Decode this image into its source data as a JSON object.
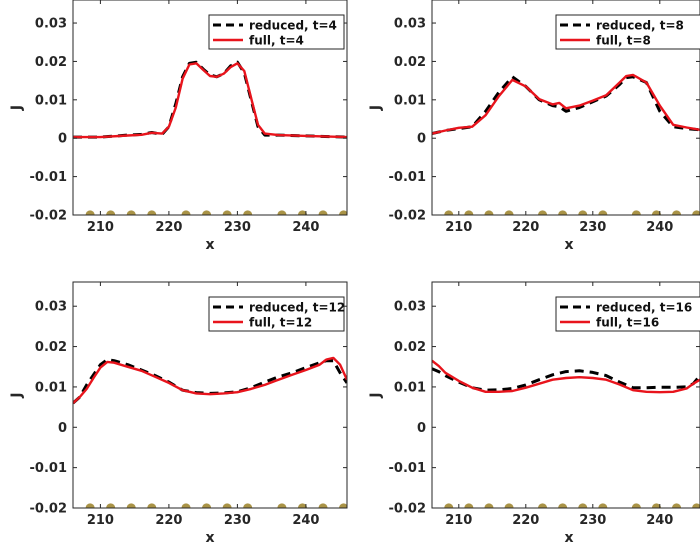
{
  "chart_data": [
    {
      "type": "line",
      "xlabel": "x",
      "ylabel": "J",
      "xlim": [
        206,
        246
      ],
      "ylim": [
        -0.02,
        0.036
      ],
      "xticks": [
        "210",
        "220",
        "230",
        "240"
      ],
      "yticks": [
        "0.03",
        "0.02",
        "0.01",
        "0",
        "-0.01",
        "-0.02"
      ],
      "legend_position": "top-right",
      "node_markers_y": -0.02,
      "node_markers_x": [
        208.5,
        211.5,
        214.5,
        217.5,
        222.5,
        225.5,
        228.5,
        231.5,
        236.5,
        239.5,
        242.5,
        245.5
      ],
      "series": [
        {
          "name": "reduced, t=4",
          "style": "dashed",
          "color": "#000000",
          "x": [
            206,
            210,
            214,
            216,
            217.5,
            219,
            220,
            221,
            222,
            223,
            224,
            225,
            226,
            227,
            228,
            229,
            230,
            231,
            232,
            233,
            234,
            236,
            240,
            244,
            246
          ],
          "y": [
            0.0003,
            0.0003,
            0.0008,
            0.001,
            0.0015,
            0.001,
            0.003,
            0.009,
            0.016,
            0.0195,
            0.0198,
            0.018,
            0.0165,
            0.016,
            0.0168,
            0.0188,
            0.0198,
            0.017,
            0.01,
            0.003,
            0.0008,
            0.0008,
            0.0006,
            0.0004,
            0.0003
          ]
        },
        {
          "name": "full, t=4",
          "style": "solid",
          "color": "#e8141c",
          "x": [
            206,
            210,
            214,
            216,
            217.5,
            219,
            220,
            221,
            222,
            223,
            224,
            225,
            226,
            227,
            228,
            229,
            230,
            231,
            232,
            233,
            234,
            236,
            240,
            244,
            246
          ],
          "y": [
            0.0003,
            0.0003,
            0.0007,
            0.0009,
            0.0014,
            0.0012,
            0.003,
            0.008,
            0.0155,
            0.0192,
            0.0195,
            0.0178,
            0.0162,
            0.016,
            0.0168,
            0.0185,
            0.0195,
            0.0175,
            0.0105,
            0.0035,
            0.0012,
            0.0008,
            0.0006,
            0.0004,
            0.0003
          ]
        }
      ]
    },
    {
      "type": "line",
      "xlabel": "x",
      "ylabel": "J",
      "xlim": [
        206,
        246
      ],
      "ylim": [
        -0.02,
        0.036
      ],
      "xticks": [
        "210",
        "220",
        "230",
        "240"
      ],
      "yticks": [
        "0.03",
        "0.02",
        "0.01",
        "0",
        "-0.01",
        "-0.02"
      ],
      "legend_position": "top-right",
      "node_markers_y": -0.02,
      "node_markers_x": [
        208.5,
        211.5,
        214.5,
        217.5,
        222.5,
        225.5,
        228.5,
        231.5,
        236.5,
        239.5,
        242.5,
        245.5
      ],
      "series": [
        {
          "name": "reduced, t=8",
          "style": "dashed",
          "color": "#000000",
          "x": [
            206,
            208,
            210,
            212,
            214,
            216,
            218,
            220,
            222,
            224,
            225,
            226,
            228,
            230,
            232,
            234,
            235,
            236,
            238,
            240,
            242,
            244,
            246
          ],
          "y": [
            0.0012,
            0.002,
            0.0025,
            0.003,
            0.007,
            0.012,
            0.016,
            0.0135,
            0.01,
            0.0085,
            0.0082,
            0.007,
            0.008,
            0.0095,
            0.011,
            0.014,
            0.0158,
            0.016,
            0.0145,
            0.007,
            0.003,
            0.0025,
            0.0022
          ]
        },
        {
          "name": "full, t=8",
          "style": "solid",
          "color": "#e8141c",
          "x": [
            206,
            208,
            210,
            212,
            214,
            216,
            218,
            220,
            222,
            224,
            225,
            226,
            228,
            230,
            232,
            234,
            235,
            236,
            238,
            240,
            242,
            244,
            246
          ],
          "y": [
            0.0012,
            0.002,
            0.0027,
            0.003,
            0.006,
            0.011,
            0.0152,
            0.0135,
            0.0102,
            0.0088,
            0.0092,
            0.0078,
            0.0085,
            0.0098,
            0.0112,
            0.0145,
            0.0162,
            0.0165,
            0.0145,
            0.0085,
            0.0035,
            0.0028,
            0.0022
          ]
        }
      ]
    },
    {
      "type": "line",
      "xlabel": "x",
      "ylabel": "J",
      "xlim": [
        206,
        246
      ],
      "ylim": [
        -0.02,
        0.036
      ],
      "xticks": [
        "210",
        "220",
        "230",
        "240"
      ],
      "yticks": [
        "0.03",
        "0.02",
        "0.01",
        "0",
        "-0.01",
        "-0.02"
      ],
      "legend_position": "top-right",
      "node_markers_y": -0.02,
      "node_markers_x": [
        208.5,
        211.5,
        214.5,
        217.5,
        222.5,
        225.5,
        228.5,
        231.5,
        236.5,
        239.5,
        242.5,
        245.5
      ],
      "series": [
        {
          "name": "reduced, t=12",
          "style": "dashed",
          "color": "#000000",
          "x": [
            206,
            207,
            208,
            209,
            210,
            211,
            212,
            214,
            216,
            218,
            220,
            222,
            224,
            226,
            228,
            230,
            232,
            234,
            236,
            238,
            240,
            242,
            243,
            244,
            245,
            246
          ],
          "y": [
            0.006,
            0.0075,
            0.0105,
            0.013,
            0.0155,
            0.0168,
            0.0165,
            0.0155,
            0.0142,
            0.0128,
            0.0112,
            0.0092,
            0.0086,
            0.0084,
            0.0085,
            0.0088,
            0.0098,
            0.0112,
            0.0125,
            0.0135,
            0.0148,
            0.016,
            0.0165,
            0.0165,
            0.0135,
            0.011
          ]
        },
        {
          "name": "full, t=12",
          "style": "solid",
          "color": "#e8141c",
          "x": [
            206,
            207,
            208,
            209,
            210,
            211,
            212,
            214,
            216,
            218,
            220,
            222,
            224,
            226,
            228,
            230,
            232,
            234,
            236,
            238,
            240,
            242,
            243,
            244,
            245,
            246
          ],
          "y": [
            0.006,
            0.0075,
            0.0095,
            0.0122,
            0.0148,
            0.0162,
            0.016,
            0.015,
            0.014,
            0.0125,
            0.011,
            0.0092,
            0.0084,
            0.0082,
            0.0084,
            0.0087,
            0.0095,
            0.0105,
            0.0118,
            0.013,
            0.0142,
            0.0155,
            0.0168,
            0.0172,
            0.0155,
            0.0118
          ]
        }
      ]
    },
    {
      "type": "line",
      "xlabel": "x",
      "ylabel": "J",
      "xlim": [
        206,
        246
      ],
      "ylim": [
        -0.02,
        0.036
      ],
      "xticks": [
        "210",
        "220",
        "230",
        "240"
      ],
      "yticks": [
        "0.03",
        "0.02",
        "0.01",
        "0",
        "-0.01",
        "-0.02"
      ],
      "legend_position": "top-right",
      "node_markers_y": -0.02,
      "node_markers_x": [
        208.5,
        211.5,
        214.5,
        217.5,
        222.5,
        225.5,
        228.5,
        231.5,
        236.5,
        239.5,
        242.5,
        245.5
      ],
      "series": [
        {
          "name": "reduced, t=16",
          "style": "dashed",
          "color": "#000000",
          "x": [
            206,
            207,
            208,
            210,
            212,
            214,
            216,
            218,
            220,
            222,
            224,
            226,
            228,
            230,
            232,
            234,
            236,
            238,
            240,
            242,
            244,
            245,
            246
          ],
          "y": [
            0.0145,
            0.0138,
            0.0128,
            0.0112,
            0.0098,
            0.0092,
            0.0093,
            0.0096,
            0.0105,
            0.0118,
            0.013,
            0.0138,
            0.014,
            0.0136,
            0.0128,
            0.0112,
            0.0098,
            0.0098,
            0.0099,
            0.0099,
            0.01,
            0.0108,
            0.0128
          ]
        },
        {
          "name": "full, t=16",
          "style": "solid",
          "color": "#e8141c",
          "x": [
            206,
            207,
            208,
            210,
            212,
            214,
            216,
            218,
            220,
            222,
            224,
            226,
            228,
            230,
            232,
            234,
            236,
            238,
            240,
            242,
            244,
            245,
            246
          ],
          "y": [
            0.0165,
            0.0152,
            0.0135,
            0.0115,
            0.0098,
            0.0088,
            0.0088,
            0.009,
            0.0098,
            0.0108,
            0.0118,
            0.0122,
            0.0124,
            0.0122,
            0.0118,
            0.0106,
            0.0092,
            0.0088,
            0.0087,
            0.0088,
            0.0096,
            0.0108,
            0.0118
          ]
        }
      ]
    }
  ],
  "colors": {
    "axis": "#262626",
    "marker": "#a99346",
    "reduced": "#000000",
    "full": "#e8141c"
  }
}
